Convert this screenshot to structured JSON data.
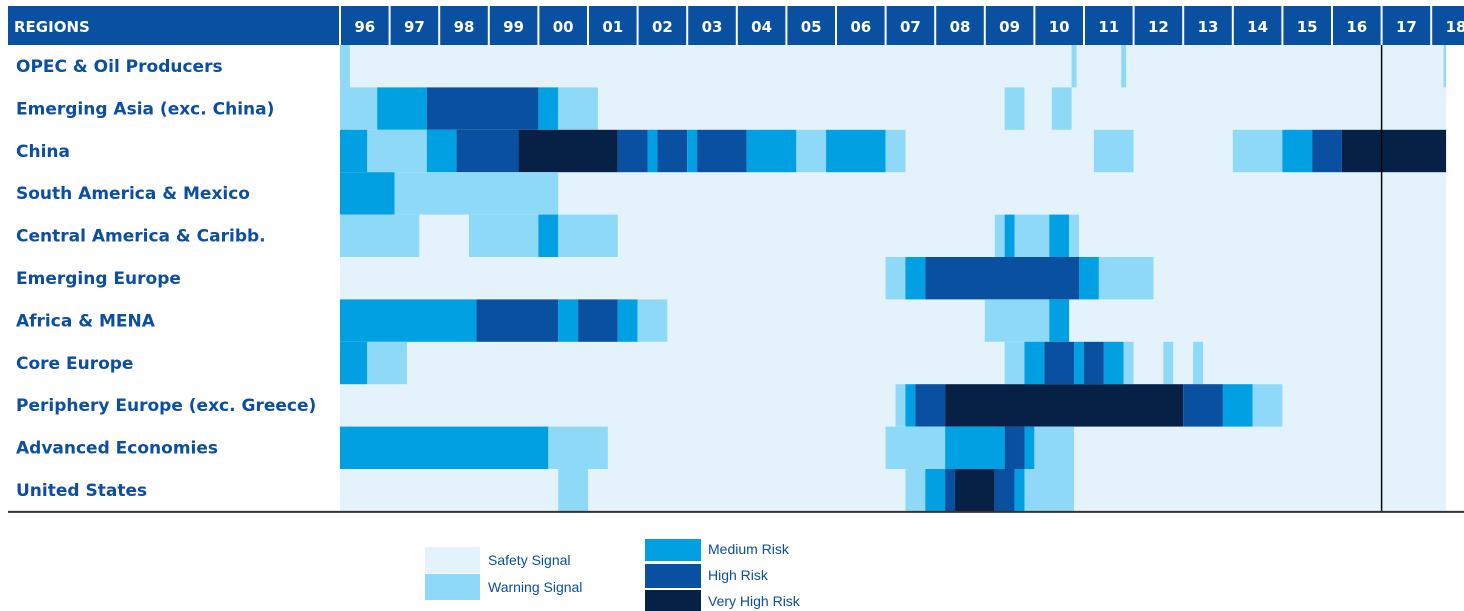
{
  "chart_data": {
    "type": "heatmap",
    "header_label": "REGIONS",
    "years": [
      "96",
      "97",
      "98",
      "99",
      "00",
      "01",
      "02",
      "03",
      "04",
      "05",
      "06",
      "07",
      "08",
      "09",
      "10",
      "11",
      "12",
      "13",
      "14",
      "15",
      "16",
      "17",
      "18"
    ],
    "levels": [
      "Safety Signal",
      "Warning Signal",
      "Medium Risk",
      "High Risk",
      "Very High Risk"
    ],
    "colors": [
      "#e4f3fb",
      "#8fd9f8",
      "#00a0e3",
      "#0a50a1",
      "#072146"
    ],
    "header_color": "#0a50a1",
    "divider_after_year": "16",
    "time_start": 1996,
    "time_end": 2018.3,
    "regions": [
      {
        "name": "OPEC & Oil Producers",
        "segments": [
          [
            1996.0,
            1996.2,
            1
          ],
          [
            2010.75,
            2010.85,
            1
          ],
          [
            2011.75,
            2011.85,
            1
          ],
          [
            2018.25,
            2018.3,
            1
          ]
        ]
      },
      {
        "name": "Emerging Asia (exc. China)",
        "segments": [
          [
            1996.0,
            1996.75,
            1
          ],
          [
            1996.75,
            1997.75,
            2
          ],
          [
            1997.75,
            2000.0,
            3
          ],
          [
            2000.0,
            2000.4,
            2
          ],
          [
            2000.4,
            2001.2,
            1
          ],
          [
            2009.4,
            2009.8,
            1
          ],
          [
            2010.35,
            2010.75,
            1
          ]
        ]
      },
      {
        "name": "China",
        "segments": [
          [
            1996.0,
            1996.55,
            2
          ],
          [
            1996.55,
            1997.75,
            1
          ],
          [
            1997.75,
            1998.35,
            2
          ],
          [
            1998.35,
            1999.6,
            3
          ],
          [
            1999.6,
            2001.6,
            4
          ],
          [
            2001.6,
            2002.2,
            3
          ],
          [
            2002.2,
            2002.4,
            2
          ],
          [
            2002.4,
            2003.0,
            3
          ],
          [
            2003.0,
            2003.2,
            2
          ],
          [
            2003.2,
            2004.2,
            3
          ],
          [
            2004.2,
            2005.2,
            2
          ],
          [
            2005.2,
            2005.8,
            1
          ],
          [
            2005.8,
            2007.0,
            2
          ],
          [
            2007.0,
            2007.4,
            1
          ],
          [
            2011.2,
            2012.0,
            1
          ],
          [
            2014.0,
            2015.0,
            1
          ],
          [
            2015.0,
            2015.6,
            2
          ],
          [
            2015.6,
            2016.2,
            3
          ],
          [
            2016.2,
            2018.3,
            4
          ]
        ]
      },
      {
        "name": "South America & Mexico",
        "segments": [
          [
            1996.0,
            1997.1,
            2
          ],
          [
            1997.1,
            2000.4,
            1
          ]
        ]
      },
      {
        "name": "Central America & Caribb.",
        "segments": [
          [
            1996.0,
            1997.6,
            1
          ],
          [
            1998.6,
            2000.0,
            1
          ],
          [
            2000.0,
            2000.4,
            2
          ],
          [
            2000.4,
            2001.6,
            1
          ],
          [
            2009.2,
            2009.4,
            1
          ],
          [
            2009.4,
            2009.6,
            2
          ],
          [
            2009.6,
            2010.3,
            1
          ],
          [
            2010.3,
            2010.7,
            2
          ],
          [
            2010.7,
            2010.9,
            1
          ]
        ]
      },
      {
        "name": "Emerging Europe",
        "segments": [
          [
            2007.0,
            2007.4,
            1
          ],
          [
            2007.4,
            2007.8,
            2
          ],
          [
            2007.8,
            2010.9,
            3
          ],
          [
            2010.9,
            2011.3,
            2
          ],
          [
            2011.3,
            2012.4,
            1
          ]
        ]
      },
      {
        "name": "Africa & MENA",
        "segments": [
          [
            1996.0,
            1998.75,
            2
          ],
          [
            1998.75,
            2000.4,
            3
          ],
          [
            2000.4,
            2000.8,
            2
          ],
          [
            2000.8,
            2001.6,
            3
          ],
          [
            2001.6,
            2002.0,
            2
          ],
          [
            2002.0,
            2002.6,
            1
          ],
          [
            2009.0,
            2010.3,
            1
          ],
          [
            2010.3,
            2010.7,
            2
          ]
        ]
      },
      {
        "name": "Core Europe",
        "segments": [
          [
            1996.0,
            1996.55,
            2
          ],
          [
            1996.55,
            1997.35,
            1
          ],
          [
            2009.4,
            2009.8,
            1
          ],
          [
            2009.8,
            2010.2,
            2
          ],
          [
            2010.2,
            2010.8,
            3
          ],
          [
            2010.8,
            2011.0,
            2
          ],
          [
            2011.0,
            2011.4,
            3
          ],
          [
            2011.4,
            2011.8,
            2
          ],
          [
            2011.8,
            2012.0,
            1
          ],
          [
            2012.6,
            2012.8,
            1
          ],
          [
            2013.2,
            2013.4,
            1
          ]
        ]
      },
      {
        "name": "Periphery Europe (exc. Greece)",
        "segments": [
          [
            2007.2,
            2007.4,
            1
          ],
          [
            2007.4,
            2007.6,
            2
          ],
          [
            2007.6,
            2008.2,
            3
          ],
          [
            2008.2,
            2013.0,
            4
          ],
          [
            2013.0,
            2013.8,
            3
          ],
          [
            2013.8,
            2014.4,
            2
          ],
          [
            2014.4,
            2015.0,
            1
          ]
        ]
      },
      {
        "name": "Advanced Economies",
        "segments": [
          [
            1996.0,
            2000.2,
            2
          ],
          [
            2000.2,
            2001.4,
            1
          ],
          [
            2007.0,
            2008.2,
            1
          ],
          [
            2008.2,
            2009.4,
            2
          ],
          [
            2009.4,
            2009.8,
            3
          ],
          [
            2009.8,
            2010.0,
            2
          ],
          [
            2010.0,
            2010.8,
            1
          ]
        ]
      },
      {
        "name": "United States",
        "segments": [
          [
            2000.4,
            2001.0,
            1
          ],
          [
            2007.4,
            2007.8,
            1
          ],
          [
            2007.8,
            2008.2,
            2
          ],
          [
            2008.2,
            2008.4,
            3
          ],
          [
            2008.4,
            2009.2,
            4
          ],
          [
            2009.2,
            2009.6,
            3
          ],
          [
            2009.6,
            2009.8,
            2
          ],
          [
            2009.8,
            2010.8,
            1
          ]
        ]
      }
    ]
  },
  "legend": {
    "left": [
      "Safety Signal",
      "Warning Signal"
    ],
    "right": [
      "Medium Risk",
      "High Risk",
      "Very High Risk"
    ]
  }
}
